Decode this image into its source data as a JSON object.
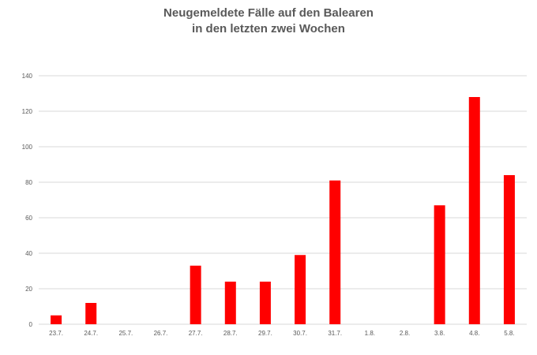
{
  "chart_data": {
    "type": "bar",
    "title_lines": [
      "Neugemeldete Fälle auf den Balearen",
      "in den letzten zwei Wochen"
    ],
    "categories": [
      "23.7.",
      "24.7.",
      "25.7.",
      "26.7.",
      "27.7.",
      "28.7.",
      "29.7.",
      "30.7.",
      "31.7.",
      "1.8.",
      "2.8.",
      "3.8.",
      "4.8.",
      "5.8."
    ],
    "values": [
      5,
      12,
      0,
      0,
      33,
      24,
      24,
      39,
      81,
      0,
      0,
      67,
      128,
      84
    ],
    "y_ticks": [
      "0",
      "20",
      "40",
      "60",
      "80",
      "100",
      "120",
      "140"
    ],
    "ylim": [
      0,
      140
    ],
    "xlabel": "",
    "ylabel": "",
    "grid": true,
    "legend": "none",
    "colors": {
      "bar": "#ff0000",
      "grid": "#d9d9d9",
      "text": "#595959"
    }
  }
}
